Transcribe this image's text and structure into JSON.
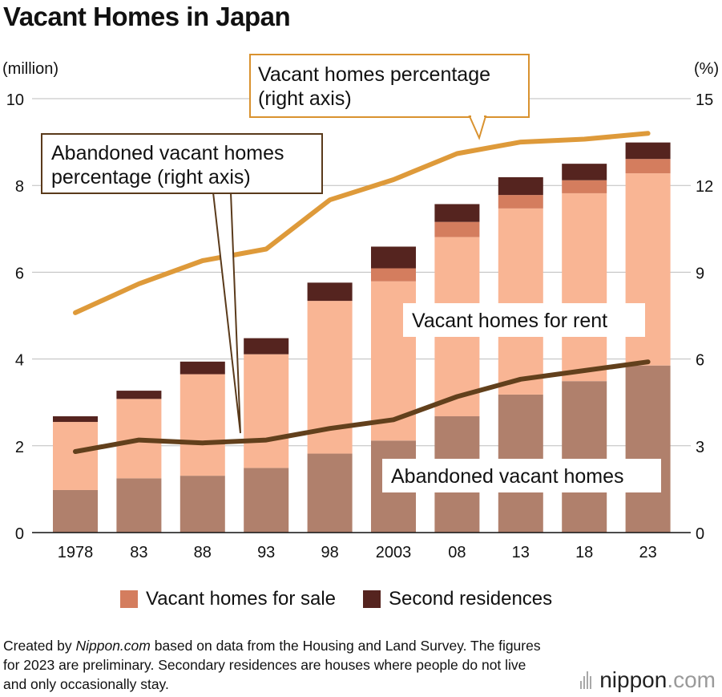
{
  "title": "Vacant Homes in Japan",
  "chart_data": {
    "type": "bar",
    "stacked": true,
    "title": "Vacant Homes in Japan",
    "left_axis_label": "(million)",
    "right_axis_label": "(%)",
    "ylim": [
      0,
      10
    ],
    "y2lim": [
      0,
      15
    ],
    "left_ticks": [
      "0",
      "2",
      "4",
      "6",
      "8",
      "10"
    ],
    "right_ticks": [
      "0",
      "3",
      "6",
      "9",
      "12",
      "15"
    ],
    "categories": [
      "1978",
      "83",
      "88",
      "93",
      "98",
      "2003",
      "08",
      "13",
      "18",
      "23"
    ],
    "series": [
      {
        "name": "Abandoned vacant homes",
        "color": "#b0806c",
        "values": [
          0.98,
          1.25,
          1.31,
          1.49,
          1.82,
          2.12,
          2.68,
          3.18,
          3.49,
          3.85
        ]
      },
      {
        "name": "Vacant homes for rent",
        "color": "#f9b594",
        "values": [
          1.57,
          1.83,
          2.34,
          2.62,
          3.52,
          3.67,
          4.13,
          4.29,
          4.33,
          4.43
        ]
      },
      {
        "name": "Vacant homes for sale",
        "color": "#d47d5e",
        "values": [
          0,
          0,
          0,
          0,
          0,
          0.3,
          0.35,
          0.31,
          0.3,
          0.33
        ]
      },
      {
        "name": "Second residences",
        "color": "#55241f",
        "values": [
          0.13,
          0.19,
          0.29,
          0.37,
          0.42,
          0.5,
          0.41,
          0.41,
          0.38,
          0.38
        ]
      }
    ],
    "lines": [
      {
        "name": "Vacant homes percentage (right axis)",
        "color": "#de9a3a",
        "values": [
          7.6,
          8.6,
          9.4,
          9.8,
          11.5,
          12.2,
          13.1,
          13.5,
          13.6,
          13.8
        ]
      },
      {
        "name": "Abandoned vacant homes percentage (right axis)",
        "color": "#62401c",
        "values": [
          2.8,
          3.2,
          3.1,
          3.2,
          3.6,
          3.9,
          4.7,
          5.3,
          5.6,
          5.9
        ]
      }
    ],
    "annotations": {
      "vacant_pct": [
        "Vacant homes percentage",
        "(right axis)"
      ],
      "abandoned_pct": [
        "Abandoned vacant homes",
        "percentage (right axis)"
      ],
      "for_rent": "Vacant homes for rent",
      "abandoned": "Abandoned vacant homes"
    }
  },
  "legend": {
    "sale": "Vacant homes for sale",
    "sale_color": "#d47d5e",
    "second": "Second residences",
    "second_color": "#55241f"
  },
  "note": {
    "prefix": "Created by ",
    "source": "Nippon.com",
    "rest": " based on data from the Housing and Land Survey. The figures for 2023 are preliminary. Secondary residences are houses where people do not live and only occasionally stay."
  },
  "logo": {
    "name": "nippon",
    "tld": ".com"
  }
}
